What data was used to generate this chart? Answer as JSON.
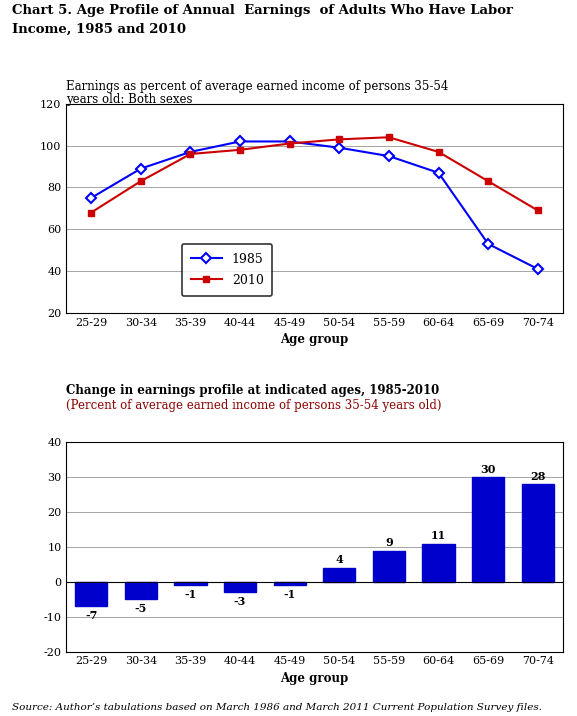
{
  "title_line1": "Chart 5. Age Profile of Annual  Earnings  of Adults Who Have Labor",
  "title_line2": "Income, 1985 and 2010",
  "age_groups": [
    "25-29",
    "30-34",
    "35-39",
    "40-44",
    "45-49",
    "50-54",
    "55-59",
    "60-64",
    "65-69",
    "70-74"
  ],
  "line_subtitle_line1": "Earnings as percent of average earned income of persons 35-54",
  "line_subtitle_line2": "years old: Both sexes",
  "data_1985": [
    75,
    89,
    97,
    102,
    102,
    99,
    95,
    87,
    53,
    41
  ],
  "data_2010": [
    68,
    83,
    96,
    98,
    101,
    103,
    104,
    97,
    83,
    69
  ],
  "line_ylim": [
    20,
    120
  ],
  "line_yticks": [
    20,
    40,
    60,
    80,
    100,
    120
  ],
  "color_1985": "#0000FF",
  "color_2010": "#CC0000",
  "bar_subtitle_line1": "Change in earnings profile at indicated ages, 1985-2010",
  "bar_subtitle_line2": "(Percent of average earned income of persons 35-54 years old)",
  "bar_subtitle_line2_color": "#8B0000",
  "bar_values": [
    -7,
    -5,
    -1,
    -3,
    -1,
    4,
    9,
    11,
    30,
    28
  ],
  "bar_color": "#0000CC",
  "bar_ylim": [
    -20,
    40
  ],
  "bar_yticks": [
    -20,
    -10,
    0,
    10,
    20,
    30,
    40
  ],
  "xlabel": "Age group",
  "source_text": "Source: Author’s tabulations based on March 1986 and March 2011 Current Population Survey files.",
  "legend_1985": "1985",
  "legend_2010": "2010"
}
